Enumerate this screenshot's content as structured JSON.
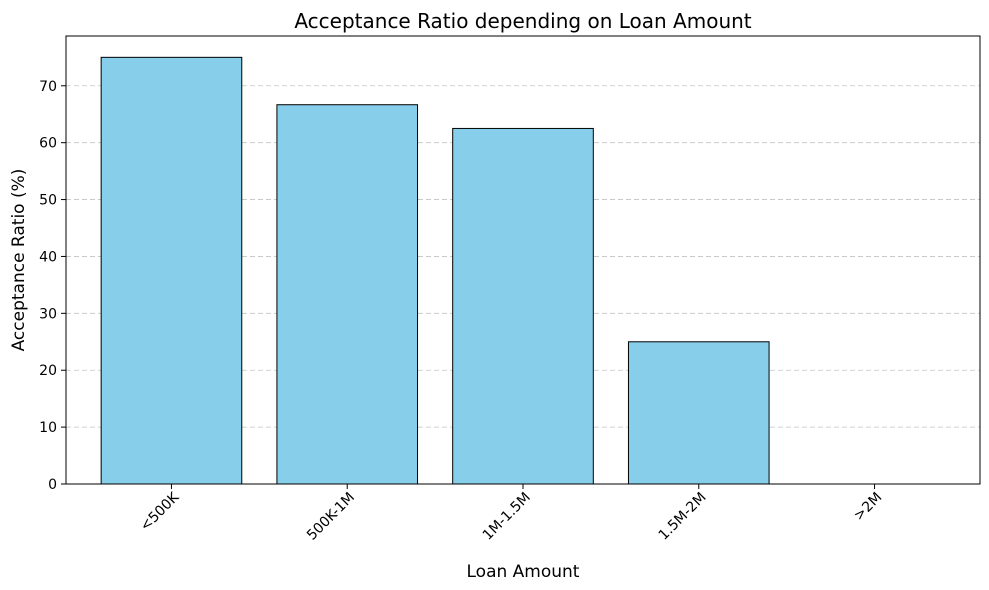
{
  "chart_data": {
    "type": "bar",
    "title": "Acceptance Ratio depending on Loan Amount",
    "xlabel": "Loan Amount",
    "ylabel": "Acceptance Ratio (%)",
    "categories": [
      "<500K",
      "500K-1M",
      "1M-1.5M",
      "1.5M-2M",
      ">2M"
    ],
    "values": [
      75.0,
      66.67,
      62.5,
      25.0,
      0.0
    ],
    "ylim": [
      0,
      78.75
    ],
    "yticks": [
      0,
      10,
      20,
      30,
      40,
      50,
      60,
      70
    ],
    "grid": "y-axis, dashed",
    "bar_color": "#87ceeb",
    "edge_color": "#000000",
    "xtick_rotation_deg": 45
  }
}
